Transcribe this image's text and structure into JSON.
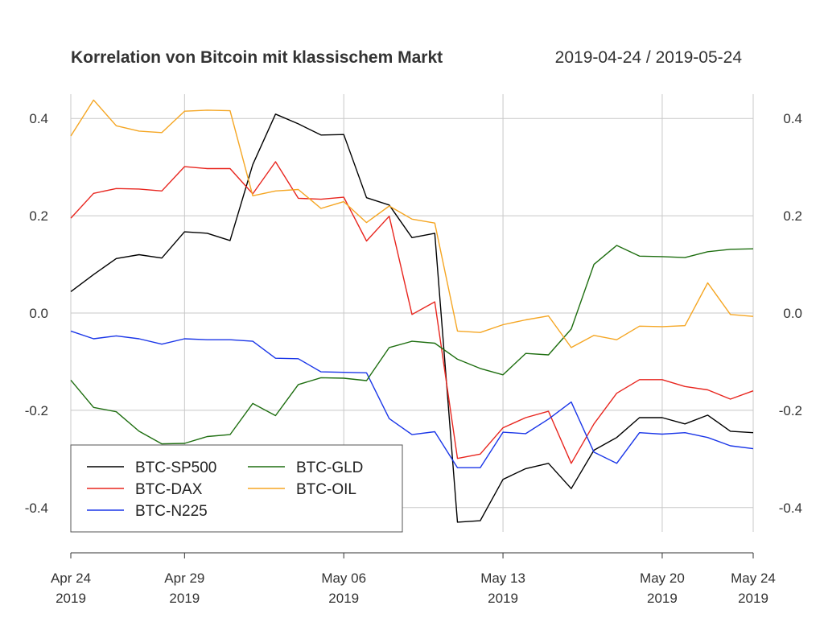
{
  "chart_data": {
    "type": "line",
    "title": "Korrelation von Bitcoin mit klassischem Markt",
    "date_range": "2019-04-24 / 2019-05-24",
    "xlim": [
      "2019-04-24",
      "2019-05-24"
    ],
    "ylim": [
      -0.45,
      0.45
    ],
    "y_ticks": [
      0.4,
      0.2,
      0.0,
      -0.2,
      -0.4
    ],
    "y_tick_labels": [
      "0.4",
      "0.2",
      "0.0",
      "-0.2",
      "-0.4"
    ],
    "x_ticks": [
      {
        "date": "2019-04-24",
        "label1": "Apr 24",
        "label2": "2019"
      },
      {
        "date": "2019-04-29",
        "label1": "Apr 29",
        "label2": "2019"
      },
      {
        "date": "2019-05-06",
        "label1": "May 06",
        "label2": "2019"
      },
      {
        "date": "2019-05-13",
        "label1": "May 13",
        "label2": "2019"
      },
      {
        "date": "2019-05-20",
        "label1": "May 20",
        "label2": "2019"
      },
      {
        "date": "2019-05-24",
        "label1": "May 24",
        "label2": "2019"
      }
    ],
    "grid": true,
    "legend_position": "bottom-left",
    "x": [
      "2019-04-24",
      "2019-04-25",
      "2019-04-26",
      "2019-04-27",
      "2019-04-28",
      "2019-04-29",
      "2019-04-30",
      "2019-05-01",
      "2019-05-02",
      "2019-05-03",
      "2019-05-04",
      "2019-05-05",
      "2019-05-06",
      "2019-05-07",
      "2019-05-08",
      "2019-05-09",
      "2019-05-10",
      "2019-05-11",
      "2019-05-12",
      "2019-05-13",
      "2019-05-14",
      "2019-05-15",
      "2019-05-16",
      "2019-05-17",
      "2019-05-18",
      "2019-05-19",
      "2019-05-20",
      "2019-05-21",
      "2019-05-22",
      "2019-05-23",
      "2019-05-24"
    ],
    "series": [
      {
        "name": "BTC-SP500",
        "color": "#000000",
        "values": [
          0.044,
          0.079,
          0.112,
          0.12,
          0.113,
          0.167,
          0.164,
          0.149,
          0.305,
          0.409,
          0.389,
          0.366,
          0.367,
          0.237,
          0.222,
          0.155,
          0.164,
          -0.43,
          -0.427,
          -0.342,
          -0.32,
          -0.309,
          -0.361,
          -0.282,
          -0.256,
          -0.215,
          -0.215,
          -0.228,
          -0.21,
          -0.243,
          -0.246
        ]
      },
      {
        "name": "BTC-DAX",
        "color": "#e8261f",
        "values": [
          0.195,
          0.246,
          0.256,
          0.255,
          0.251,
          0.301,
          0.297,
          0.297,
          0.245,
          0.311,
          0.236,
          0.234,
          0.238,
          0.148,
          0.199,
          -0.003,
          0.023,
          -0.299,
          -0.29,
          -0.236,
          -0.215,
          -0.202,
          -0.309,
          -0.228,
          -0.165,
          -0.137,
          -0.137,
          -0.151,
          -0.158,
          -0.177,
          -0.16
        ]
      },
      {
        "name": "BTC-N225",
        "color": "#1a36e8",
        "values": [
          -0.037,
          -0.053,
          -0.047,
          -0.053,
          -0.064,
          -0.053,
          -0.055,
          -0.055,
          -0.058,
          -0.093,
          -0.094,
          -0.121,
          -0.122,
          -0.123,
          -0.217,
          -0.25,
          -0.244,
          -0.318,
          -0.318,
          -0.245,
          -0.248,
          -0.218,
          -0.183,
          -0.286,
          -0.309,
          -0.246,
          -0.249,
          -0.246,
          -0.256,
          -0.273,
          -0.279
        ]
      },
      {
        "name": "BTC-GLD",
        "color": "#1e6e10",
        "values": [
          -0.138,
          -0.194,
          -0.203,
          -0.243,
          -0.269,
          -0.268,
          -0.254,
          -0.25,
          -0.186,
          -0.211,
          -0.147,
          -0.133,
          -0.134,
          -0.139,
          -0.071,
          -0.058,
          -0.062,
          -0.095,
          -0.114,
          -0.127,
          -0.083,
          -0.086,
          -0.033,
          0.1,
          0.139,
          0.117,
          0.116,
          0.114,
          0.126,
          0.131,
          0.132
        ]
      },
      {
        "name": "BTC-OIL",
        "color": "#f5a623",
        "values": [
          0.364,
          0.438,
          0.385,
          0.374,
          0.371,
          0.415,
          0.417,
          0.416,
          0.241,
          0.251,
          0.254,
          0.215,
          0.229,
          0.186,
          0.22,
          0.193,
          0.185,
          -0.037,
          -0.04,
          -0.024,
          -0.014,
          -0.006,
          -0.071,
          -0.046,
          -0.055,
          -0.027,
          -0.028,
          -0.026,
          0.062,
          -0.003,
          -0.007
        ]
      }
    ]
  }
}
